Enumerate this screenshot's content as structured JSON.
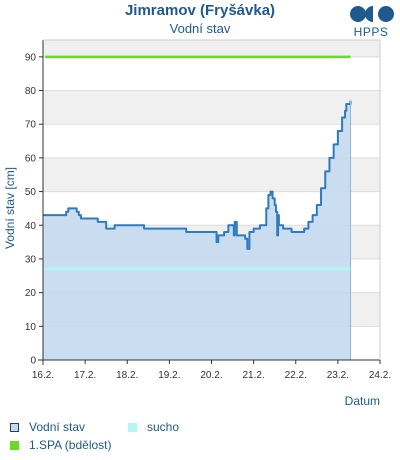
{
  "header": {
    "title": "Jimramov (Fryšávka)",
    "subtitle": "Vodní stav",
    "logo_text": "HPPS"
  },
  "colors": {
    "series_line": "#2f7bbf",
    "series_fill": "#c5d9ee",
    "spa1": "#66dd22",
    "sucho": "#b3f5f2",
    "band": "#f0f0f0"
  },
  "legend": {
    "series_label": "Vodní stav",
    "sucho_label": "sucho",
    "spa1_label": "1.SPA (bdělost)"
  },
  "chart_data": {
    "type": "area",
    "title": "Vodní stav",
    "xlabel": "Datum",
    "ylabel": "Vodní stav [cm]",
    "xlim": [
      16.2,
      24.2
    ],
    "ylim": [
      0,
      95
    ],
    "x_ticks": [
      "16.2.",
      "17.2.",
      "18.2.",
      "19.2.",
      "20.2.",
      "21.2.",
      "22.2.",
      "23.2.",
      "24.2."
    ],
    "y_ticks": [
      0,
      10,
      20,
      30,
      40,
      50,
      60,
      70,
      80,
      90
    ],
    "grid": true,
    "legend_position": "bottom",
    "thresholds": [
      {
        "name": "1.SPA (bdělost)",
        "value": 90,
        "color": "#66dd22"
      },
      {
        "name": "sucho",
        "value": 27,
        "color": "#b3f5f2"
      }
    ],
    "series": [
      {
        "name": "Vodní stav",
        "x": [
          16.2,
          16.7,
          16.75,
          16.8,
          16.9,
          17.0,
          17.05,
          17.1,
          17.25,
          17.5,
          17.6,
          17.65,
          17.7,
          17.9,
          18.1,
          18.2,
          18.3,
          18.6,
          18.7,
          19.2,
          19.5,
          19.6,
          19.7,
          20.2,
          20.3,
          20.32,
          20.36,
          20.4,
          20.5,
          20.6,
          20.7,
          20.73,
          20.75,
          20.8,
          20.85,
          21.0,
          21.05,
          21.1,
          21.2,
          21.35,
          21.5,
          21.55,
          21.6,
          21.65,
          21.7,
          21.73,
          21.76,
          21.78,
          21.8,
          21.85,
          21.9,
          22.0,
          22.1,
          22.2,
          22.3,
          22.4,
          22.5,
          22.6,
          22.7,
          22.8,
          22.9,
          23.0,
          23.1,
          23.2,
          23.3,
          23.37,
          23.4,
          23.5
        ],
        "values": [
          43,
          43,
          44,
          45,
          45,
          44,
          43,
          42,
          42,
          41,
          41,
          41,
          39,
          40,
          40,
          40,
          40,
          39,
          39,
          39,
          39,
          38,
          38,
          38,
          38,
          35,
          37,
          37,
          38,
          40,
          40,
          37,
          41,
          37,
          37,
          36,
          33,
          38,
          39,
          40,
          45,
          49,
          50,
          48,
          46,
          44,
          37,
          43,
          40,
          40,
          39,
          39,
          38,
          38,
          38,
          39,
          41,
          43,
          46,
          51,
          56,
          60,
          64,
          68,
          72,
          74,
          76,
          77
        ]
      }
    ]
  }
}
